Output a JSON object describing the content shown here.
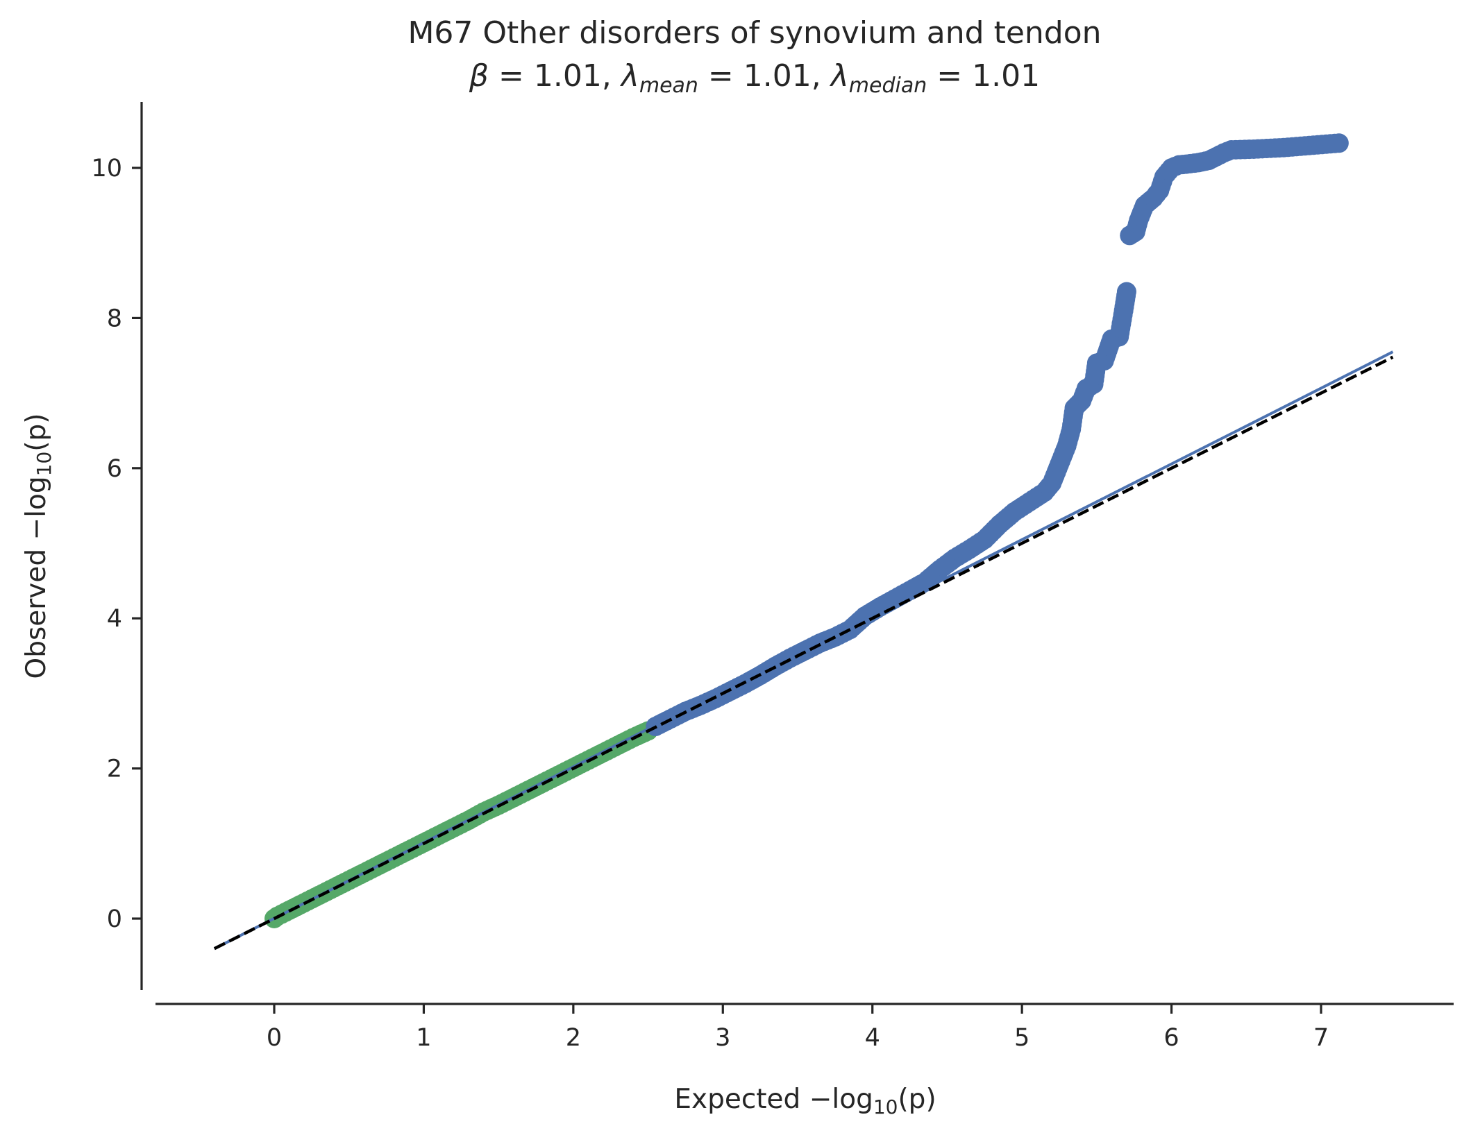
{
  "chart_data": {
    "type": "scatter",
    "title": "M67 Other disorders of synovium and tendon",
    "subtitle": {
      "beta_symbol": "β",
      "beta_value": "1.01",
      "lambda_symbol": "λ",
      "lambda_mean_sub": "mean",
      "lambda_mean_value": "1.01",
      "lambda_median_sub": "median",
      "lambda_median_value": "1.01"
    },
    "xlabel": {
      "prefix": "Expected −log",
      "sub": "10",
      "suffix": "(p)"
    },
    "ylabel": {
      "prefix": "Observed −log",
      "sub": "10",
      "suffix": "(p)"
    },
    "xlim": [
      -0.8,
      7.85
    ],
    "ylim": [
      -0.95,
      10.85
    ],
    "xticks": [
      0,
      1,
      2,
      3,
      4,
      5,
      6,
      7
    ],
    "yticks": [
      0,
      2,
      4,
      6,
      8,
      10
    ],
    "grid": false,
    "legend": "none",
    "colors": {
      "blue": "#4c72b0",
      "green": "#55a868",
      "reference": "#000000",
      "fit": "#4c72b0"
    },
    "reference_line": {
      "style": "dashed",
      "x": [
        -0.4,
        7.48
      ],
      "y": [
        -0.4,
        7.48
      ]
    },
    "fit_line": {
      "slope": 1.01,
      "x": [
        -0.4,
        7.48
      ],
      "y": [
        -0.4,
        7.55
      ]
    },
    "series": [
      {
        "color": "green",
        "points": [
          [
            0.0,
            0.0
          ],
          [
            0.02,
            0.03
          ],
          [
            0.05,
            0.06
          ],
          [
            0.1,
            0.11
          ],
          [
            0.2,
            0.21
          ],
          [
            0.3,
            0.31
          ],
          [
            0.4,
            0.41
          ],
          [
            0.5,
            0.51
          ],
          [
            0.6,
            0.61
          ],
          [
            0.7,
            0.71
          ],
          [
            0.8,
            0.81
          ],
          [
            0.9,
            0.91
          ],
          [
            1.0,
            1.01
          ],
          [
            1.1,
            1.11
          ],
          [
            1.2,
            1.21
          ],
          [
            1.3,
            1.31
          ],
          [
            1.4,
            1.42
          ],
          [
            1.5,
            1.51
          ],
          [
            1.6,
            1.61
          ],
          [
            1.7,
            1.71
          ],
          [
            1.8,
            1.81
          ],
          [
            1.9,
            1.91
          ],
          [
            2.0,
            2.01
          ],
          [
            2.1,
            2.11
          ],
          [
            2.2,
            2.21
          ],
          [
            2.3,
            2.31
          ],
          [
            2.4,
            2.41
          ],
          [
            2.5,
            2.5
          ]
        ]
      },
      {
        "color": "blue",
        "points": [
          [
            2.55,
            2.56
          ],
          [
            2.65,
            2.66
          ],
          [
            2.75,
            2.76
          ],
          [
            2.85,
            2.84
          ],
          [
            2.95,
            2.93
          ],
          [
            3.05,
            3.03
          ],
          [
            3.15,
            3.13
          ],
          [
            3.25,
            3.24
          ],
          [
            3.35,
            3.36
          ],
          [
            3.45,
            3.47
          ],
          [
            3.55,
            3.57
          ],
          [
            3.65,
            3.67
          ],
          [
            3.75,
            3.75
          ],
          [
            3.85,
            3.85
          ],
          [
            3.95,
            4.03
          ],
          [
            4.05,
            4.15
          ],
          [
            4.15,
            4.26
          ],
          [
            4.25,
            4.37
          ],
          [
            4.35,
            4.48
          ],
          [
            4.45,
            4.65
          ],
          [
            4.55,
            4.8
          ],
          [
            4.65,
            4.92
          ],
          [
            4.75,
            5.05
          ],
          [
            4.85,
            5.25
          ],
          [
            4.95,
            5.42
          ],
          [
            5.05,
            5.55
          ],
          [
            5.15,
            5.68
          ],
          [
            5.2,
            5.8
          ],
          [
            5.25,
            6.05
          ],
          [
            5.3,
            6.3
          ],
          [
            5.33,
            6.52
          ],
          [
            5.35,
            6.8
          ],
          [
            5.4,
            6.9
          ],
          [
            5.43,
            7.06
          ],
          [
            5.48,
            7.12
          ],
          [
            5.5,
            7.4
          ],
          [
            5.55,
            7.43
          ],
          [
            5.6,
            7.72
          ],
          [
            5.65,
            7.75
          ],
          [
            5.68,
            8.1
          ],
          [
            5.7,
            8.35
          ],
          [
            5.72,
            9.1
          ],
          [
            5.76,
            9.15
          ],
          [
            5.78,
            9.3
          ],
          [
            5.82,
            9.5
          ],
          [
            5.88,
            9.6
          ],
          [
            5.92,
            9.7
          ],
          [
            5.95,
            9.88
          ],
          [
            6.0,
            10.0
          ],
          [
            6.05,
            10.04
          ],
          [
            6.1,
            10.05
          ],
          [
            6.18,
            10.07
          ],
          [
            6.25,
            10.1
          ],
          [
            6.35,
            10.2
          ],
          [
            6.4,
            10.24
          ],
          [
            6.55,
            10.25
          ],
          [
            6.75,
            10.27
          ],
          [
            7.12,
            10.33
          ]
        ]
      }
    ]
  }
}
